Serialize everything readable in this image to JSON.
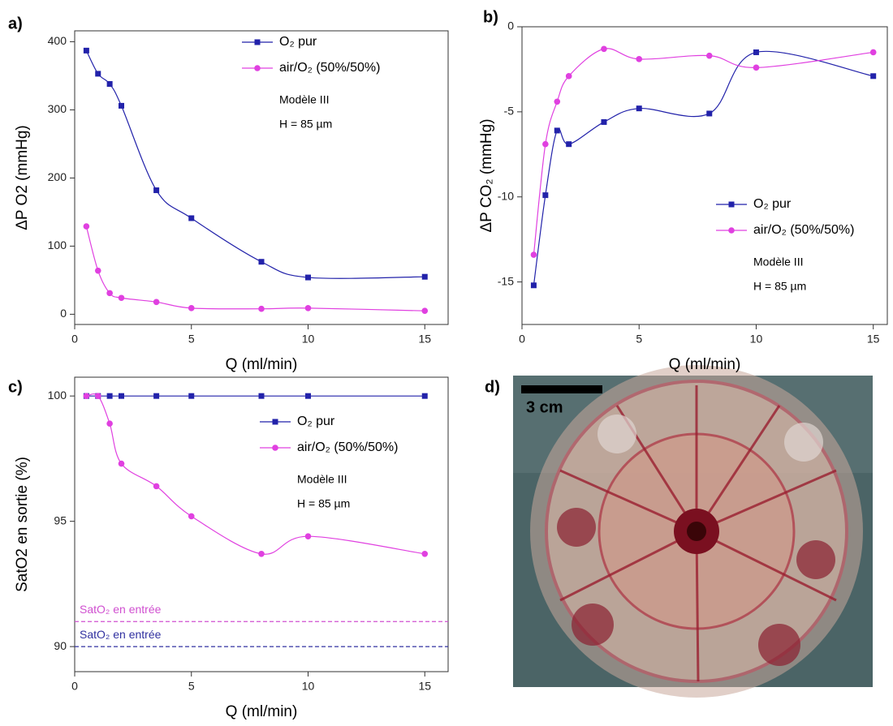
{
  "chart_data": [
    {
      "type": "line",
      "panel_label": "a)",
      "x_label": "Q (ml/min)",
      "y_label": "ΔP O2  (mmHg)",
      "xlim": [
        0,
        16
      ],
      "xticks": [
        0,
        5,
        10,
        15
      ],
      "ylim": [
        -15,
        416
      ],
      "yticks": [
        0,
        100,
        200,
        300,
        400
      ],
      "legend": "upper right",
      "annotations": [
        "Modèle III",
        "H = 85 µm"
      ],
      "x": [
        0.5,
        1,
        1.5,
        2,
        3.5,
        5,
        8,
        10,
        15
      ],
      "series": [
        {
          "name": "O₂ pur",
          "color": "#2222aa",
          "marker": "square",
          "values": [
            387,
            353,
            338,
            306,
            182,
            141,
            77,
            54,
            55
          ]
        },
        {
          "name": "air/O₂ (50%/50%)",
          "color": "#e040e0",
          "marker": "circle",
          "values": [
            129,
            64,
            31,
            24,
            18,
            9,
            8,
            9,
            5
          ]
        }
      ]
    },
    {
      "type": "line",
      "panel_label": "b)",
      "x_label": "Q (ml/min)",
      "y_label": "ΔP CO₂ (mmHg)",
      "xlim": [
        0,
        15.6
      ],
      "xticks": [
        0,
        5,
        10,
        15
      ],
      "ylim": [
        -17.5,
        0
      ],
      "yticks": [
        0,
        -5,
        -10,
        -15
      ],
      "legend": "lower right",
      "annotations": [
        "Modèle III",
        "H = 85 µm"
      ],
      "x": [
        0.5,
        1,
        1.5,
        2,
        3.5,
        5,
        8,
        10,
        15
      ],
      "series": [
        {
          "name": "O₂ pur",
          "color": "#2222aa",
          "marker": "square",
          "values": [
            -15.2,
            -9.9,
            -6.1,
            -6.9,
            -5.6,
            -4.8,
            -5.1,
            -1.5,
            -2.9
          ]
        },
        {
          "name": "air/O₂ (50%/50%)",
          "color": "#e040e0",
          "marker": "circle",
          "values": [
            -13.4,
            -6.9,
            -4.4,
            -2.9,
            -1.3,
            -1.9,
            -1.7,
            -2.4,
            -1.5
          ]
        }
      ]
    },
    {
      "type": "line",
      "panel_label": "c)",
      "x_label": "Q (ml/min)",
      "y_label": "SatO2 en sortie (%)",
      "xlim": [
        0,
        16
      ],
      "xticks": [
        0,
        5,
        10,
        15
      ],
      "ylim": [
        89,
        100.75
      ],
      "yticks": [
        90,
        95,
        100
      ],
      "legend": "upper right",
      "annotations": [
        "Modèle III",
        "H = 85 µm"
      ],
      "x": [
        0.5,
        1,
        1.5,
        2,
        3.5,
        5,
        8,
        10,
        15
      ],
      "series": [
        {
          "name": "O₂ pur",
          "color": "#2222aa",
          "marker": "square",
          "values": [
            100,
            100,
            100,
            100,
            100,
            100,
            100,
            100,
            100
          ]
        },
        {
          "name": "air/O₂ (50%/50%)",
          "color": "#e040e0",
          "marker": "circle",
          "values": [
            100,
            100,
            98.9,
            97.3,
            96.4,
            95.2,
            93.7,
            94.4,
            93.7
          ]
        }
      ],
      "hlines": [
        {
          "value": 91,
          "label": "SatO₂ en entrée",
          "color": "#d050d0"
        },
        {
          "value": 90,
          "label": "SatO₂ en entrée",
          "color": "#3030a0"
        }
      ]
    }
  ],
  "photo": {
    "panel_label": "d)",
    "scale_bar": "3 cm"
  }
}
